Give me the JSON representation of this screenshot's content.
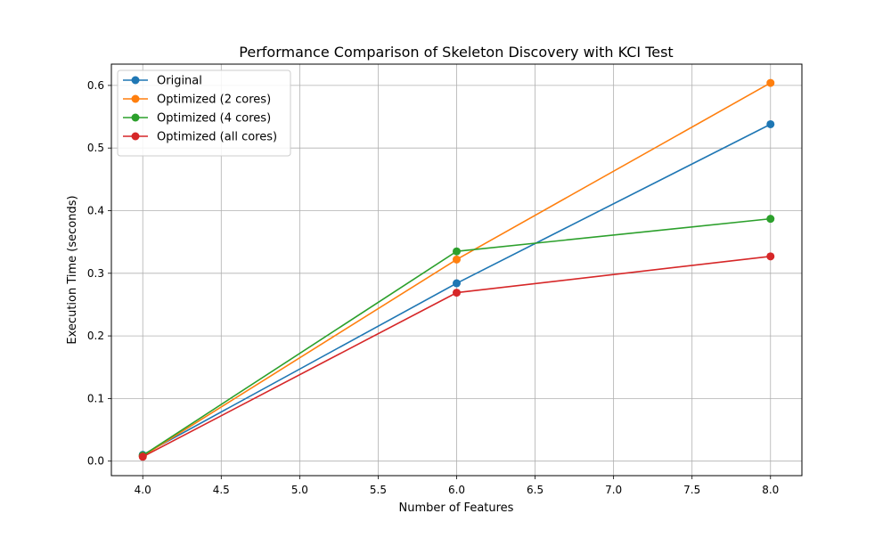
{
  "chart_data": {
    "type": "line",
    "title": "Performance Comparison of Skeleton Discovery with KCI Test",
    "xlabel": "Number of Features",
    "ylabel": "Execution Time (seconds)",
    "x": [
      4,
      6,
      8
    ],
    "series": [
      {
        "name": "Original",
        "color": "#1f77b4",
        "values": [
          0.01,
          0.284,
          0.538
        ]
      },
      {
        "name": "Optimized (2 cores)",
        "color": "#ff7f0e",
        "values": [
          0.008,
          0.322,
          0.604
        ]
      },
      {
        "name": "Optimized (4 cores)",
        "color": "#2ca02c",
        "values": [
          0.009,
          0.335,
          0.387
        ]
      },
      {
        "name": "Optimized (all cores)",
        "color": "#d62728",
        "values": [
          0.007,
          0.269,
          0.327
        ]
      }
    ],
    "xlim": [
      3.8,
      8.2
    ],
    "ylim": [
      -0.0232,
      0.634
    ],
    "xticks": [
      4.0,
      4.5,
      5.0,
      5.5,
      6.0,
      6.5,
      7.0,
      7.5,
      8.0
    ],
    "xtick_labels": [
      "4.0",
      "4.5",
      "5.0",
      "5.5",
      "6.0",
      "6.5",
      "7.0",
      "7.5",
      "8.0"
    ],
    "yticks": [
      0.0,
      0.1,
      0.2,
      0.3,
      0.4,
      0.5,
      0.6
    ],
    "ytick_labels": [
      "0.0",
      "0.1",
      "0.2",
      "0.3",
      "0.4",
      "0.5",
      "0.6"
    ],
    "grid": true,
    "legend_position": "top-left",
    "marker": "circle"
  }
}
